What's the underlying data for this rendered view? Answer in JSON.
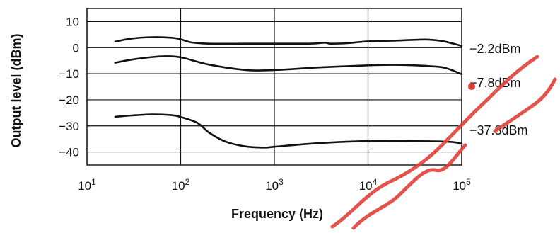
{
  "chart_data": {
    "type": "line",
    "title": "",
    "xlabel": "Frequency (Hz)",
    "ylabel": "Output level (dBm)",
    "x_scale": "log",
    "xlim": [
      10,
      100000
    ],
    "ylim": [
      -45,
      15
    ],
    "grid": true,
    "x_ticks": [
      {
        "value": 10,
        "base": "10",
        "exp": "1"
      },
      {
        "value": 100,
        "base": "10",
        "exp": "2"
      },
      {
        "value": 1000,
        "base": "10",
        "exp": "3"
      },
      {
        "value": 10000,
        "base": "10",
        "exp": "4"
      },
      {
        "value": 100000,
        "base": "10",
        "exp": "5"
      }
    ],
    "y_ticks": [
      {
        "value": 10,
        "label": "10"
      },
      {
        "value": 0,
        "label": "0"
      },
      {
        "value": -10,
        "label": "−10"
      },
      {
        "value": -20,
        "label": "−20"
      },
      {
        "value": -30,
        "label": "−30"
      },
      {
        "value": -40,
        "label": "−40"
      }
    ],
    "series": [
      {
        "name": "2.2dBm",
        "x": [
          20,
          30,
          50,
          80,
          100,
          130,
          200,
          500,
          1000,
          2000,
          2700,
          3500,
          4000,
          6000,
          10000,
          20000,
          40000,
          60000,
          80000,
          100000
        ],
        "y": [
          2.3,
          3.5,
          4.0,
          3.8,
          3.2,
          2.0,
          1.5,
          1.5,
          1.5,
          1.5,
          1.6,
          1.9,
          1.5,
          1.7,
          2.4,
          2.7,
          3.1,
          2.6,
          1.6,
          0.6
        ]
      },
      {
        "name": "7.8dBm",
        "x": [
          20,
          30,
          50,
          70,
          100,
          200,
          500,
          1000,
          3000,
          10000,
          20000,
          50000,
          70000,
          100000
        ],
        "y": [
          -5.8,
          -4.6,
          -3.6,
          -3.3,
          -3.7,
          -6.5,
          -8.6,
          -8.6,
          -7.6,
          -6.8,
          -6.6,
          -7.2,
          -8.0,
          -10.2
        ]
      },
      {
        "name": "37.8dBm",
        "x": [
          20,
          30,
          50,
          80,
          100,
          150,
          200,
          300,
          500,
          800,
          1000,
          3000,
          10000,
          20000,
          50000,
          80000,
          100000
        ],
        "y": [
          -26.5,
          -26.0,
          -25.6,
          -25.9,
          -26.6,
          -28.8,
          -32.5,
          -36.0,
          -37.9,
          -38.3,
          -38.0,
          -36.6,
          -35.8,
          -35.8,
          -35.9,
          -36.2,
          -36.8
        ]
      }
    ],
    "series_labels": [
      "−2.2dBm",
      "−7.8dBm",
      "−37.8dBm"
    ]
  },
  "colors": {
    "line": "#111111",
    "watermark": "#e0403a"
  }
}
